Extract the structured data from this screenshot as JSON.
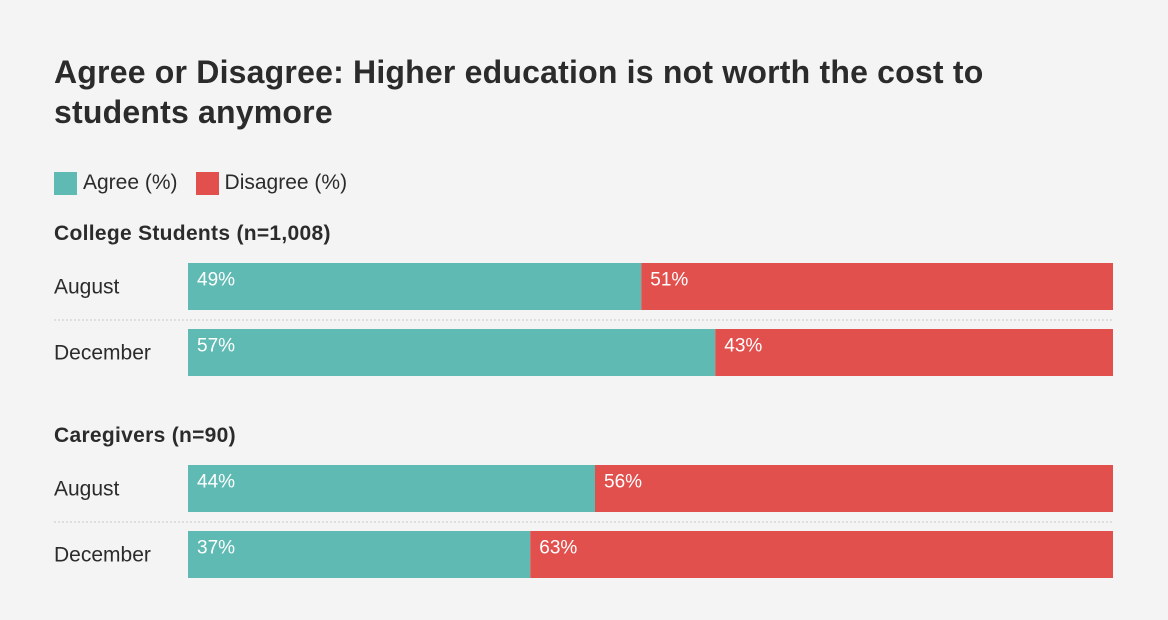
{
  "chart_data": {
    "type": "bar",
    "orientation": "horizontal",
    "stacked": true,
    "percent": true,
    "title": "Agree or Disagree: Higher education is not worth the cost to students anymore",
    "legend": [
      {
        "name": "Agree (%)",
        "color": "#5fbab3"
      },
      {
        "name": "Disagree (%)",
        "color": "#e2504d"
      }
    ],
    "legend_position": "top-left",
    "grid": false,
    "xlim": [
      0,
      100
    ],
    "groups": [
      {
        "name": "College Students (n=1,008)",
        "rows": [
          {
            "label": "August",
            "agree": 49,
            "disagree": 51,
            "agree_label": "49%",
            "disagree_label": "51%"
          },
          {
            "label": "December",
            "agree": 57,
            "disagree": 43,
            "agree_label": "57%",
            "disagree_label": "43%"
          }
        ]
      },
      {
        "name": "Caregivers (n=90)",
        "rows": [
          {
            "label": "August",
            "agree": 44,
            "disagree": 56,
            "agree_label": "44%",
            "disagree_label": "56%"
          },
          {
            "label": "December",
            "agree": 37,
            "disagree": 63,
            "agree_label": "37%",
            "disagree_label": "63%"
          }
        ]
      }
    ]
  }
}
